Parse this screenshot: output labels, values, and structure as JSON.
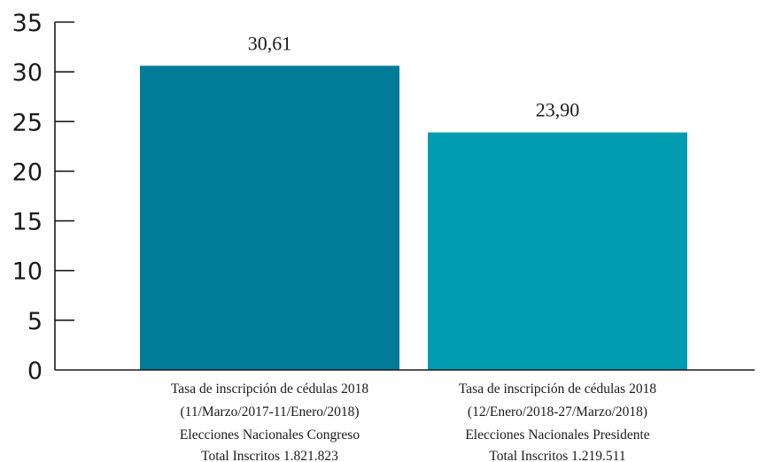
{
  "chart_data": {
    "type": "bar",
    "title": "",
    "xlabel": "",
    "ylabel": "",
    "ylim": [
      0,
      35
    ],
    "yticks": [
      "0",
      "5",
      "10",
      "15",
      "20",
      "25",
      "30",
      "35"
    ],
    "grid": false,
    "legend": "none",
    "categories": [
      {
        "lines": [
          "Tasa de inscripción de cédulas 2018",
          "(11/Marzo/2017-11/Enero/2018)",
          "Elecciones Nacionales Congreso",
          "Total Inscritos 1.821.823"
        ]
      },
      {
        "lines": [
          "Tasa de inscripción de cédulas 2018",
          "(12/Enero/2018-27/Marzo/2018)",
          "Elecciones Nacionales Presidente",
          "Total Inscritos 1.219.511"
        ]
      }
    ],
    "values": [
      30.61,
      23.9
    ],
    "value_labels": [
      "30,61",
      "23,90"
    ],
    "colors": [
      "#007c99",
      "#009db0"
    ]
  }
}
